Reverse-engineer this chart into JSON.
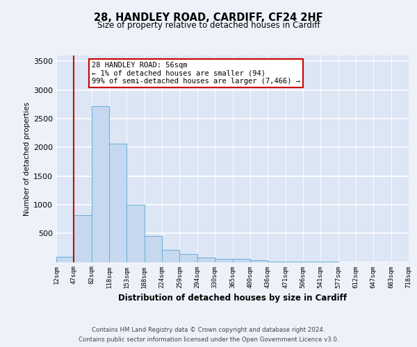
{
  "title_line1": "28, HANDLEY ROAD, CARDIFF, CF24 2HF",
  "title_line2": "Size of property relative to detached houses in Cardiff",
  "xlabel": "Distribution of detached houses by size in Cardiff",
  "ylabel": "Number of detached properties",
  "bin_labels": [
    "12sqm",
    "47sqm",
    "82sqm",
    "118sqm",
    "153sqm",
    "188sqm",
    "224sqm",
    "259sqm",
    "294sqm",
    "330sqm",
    "365sqm",
    "400sqm",
    "436sqm",
    "471sqm",
    "506sqm",
    "541sqm",
    "577sqm",
    "612sqm",
    "647sqm",
    "683sqm",
    "718sqm"
  ],
  "bar_values": [
    94,
    820,
    2720,
    2060,
    1000,
    450,
    210,
    135,
    75,
    55,
    55,
    35,
    10,
    4,
    2,
    1,
    0,
    0,
    0,
    0
  ],
  "bar_color": "#c5d8ef",
  "bar_edge_color": "#6aaed6",
  "vline_color": "#cc0000",
  "annotation_text": "28 HANDLEY ROAD: 56sqm\n← 1% of detached houses are smaller (94)\n99% of semi-detached houses are larger (7,466) →",
  "ylim": [
    0,
    3600
  ],
  "yticks": [
    0,
    500,
    1000,
    1500,
    2000,
    2500,
    3000,
    3500
  ],
  "footer_line1": "Contains HM Land Registry data © Crown copyright and database right 2024.",
  "footer_line2": "Contains public sector information licensed under the Open Government Licence v3.0.",
  "bg_color": "#edf2fa",
  "plot_bg_color": "#dce6f5",
  "grid_color": "#ffffff"
}
